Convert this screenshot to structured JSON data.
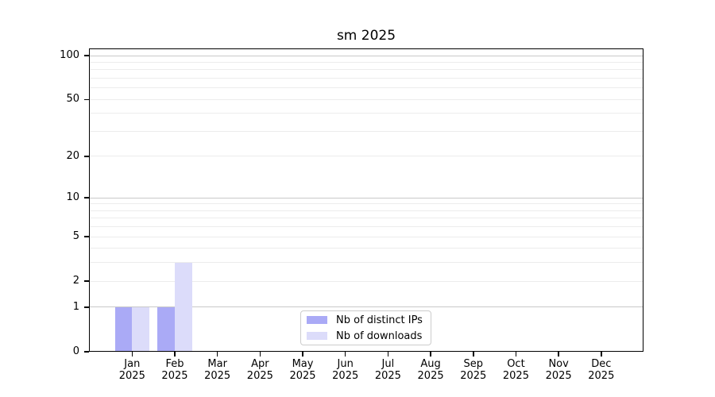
{
  "title": "sm 2025",
  "chart_data": {
    "type": "bar",
    "title": "sm 2025",
    "year_label": "2025",
    "categories": [
      "Jan",
      "Feb",
      "Mar",
      "Apr",
      "May",
      "Jun",
      "Jul",
      "Aug",
      "Sep",
      "Oct",
      "Nov",
      "Dec"
    ],
    "series": [
      {
        "name": "Nb of distinct IPs",
        "color": "#aaaaf6",
        "values": [
          1,
          1,
          0,
          0,
          0,
          0,
          0,
          0,
          0,
          0,
          0,
          0
        ]
      },
      {
        "name": "Nb of downloads",
        "color": "#dcdcfa",
        "values": [
          1,
          3,
          0,
          0,
          0,
          0,
          0,
          0,
          0,
          0,
          0,
          0
        ]
      }
    ],
    "xlabel": "",
    "ylabel": "",
    "yscale": "log1p",
    "ylim": [
      0,
      112
    ],
    "ytick_values": [
      0,
      1,
      2,
      5,
      10,
      20,
      50,
      100
    ],
    "ytick_labels": [
      "0",
      "1",
      "2",
      "5",
      "10",
      "20",
      "50",
      "100"
    ],
    "grid": "horizontal",
    "grid_major_values": [
      1,
      10,
      100
    ],
    "grid_minor_values": [
      2,
      3,
      4,
      5,
      6,
      7,
      8,
      9,
      20,
      30,
      40,
      50,
      60,
      70,
      80,
      90
    ],
    "legend_position": "lower-center",
    "colors": {
      "grid_major": "#c9c9c9",
      "grid_minor": "#ececec",
      "spine": "#000000",
      "legend_border": "#cccccc",
      "background": "#ffffff"
    }
  }
}
